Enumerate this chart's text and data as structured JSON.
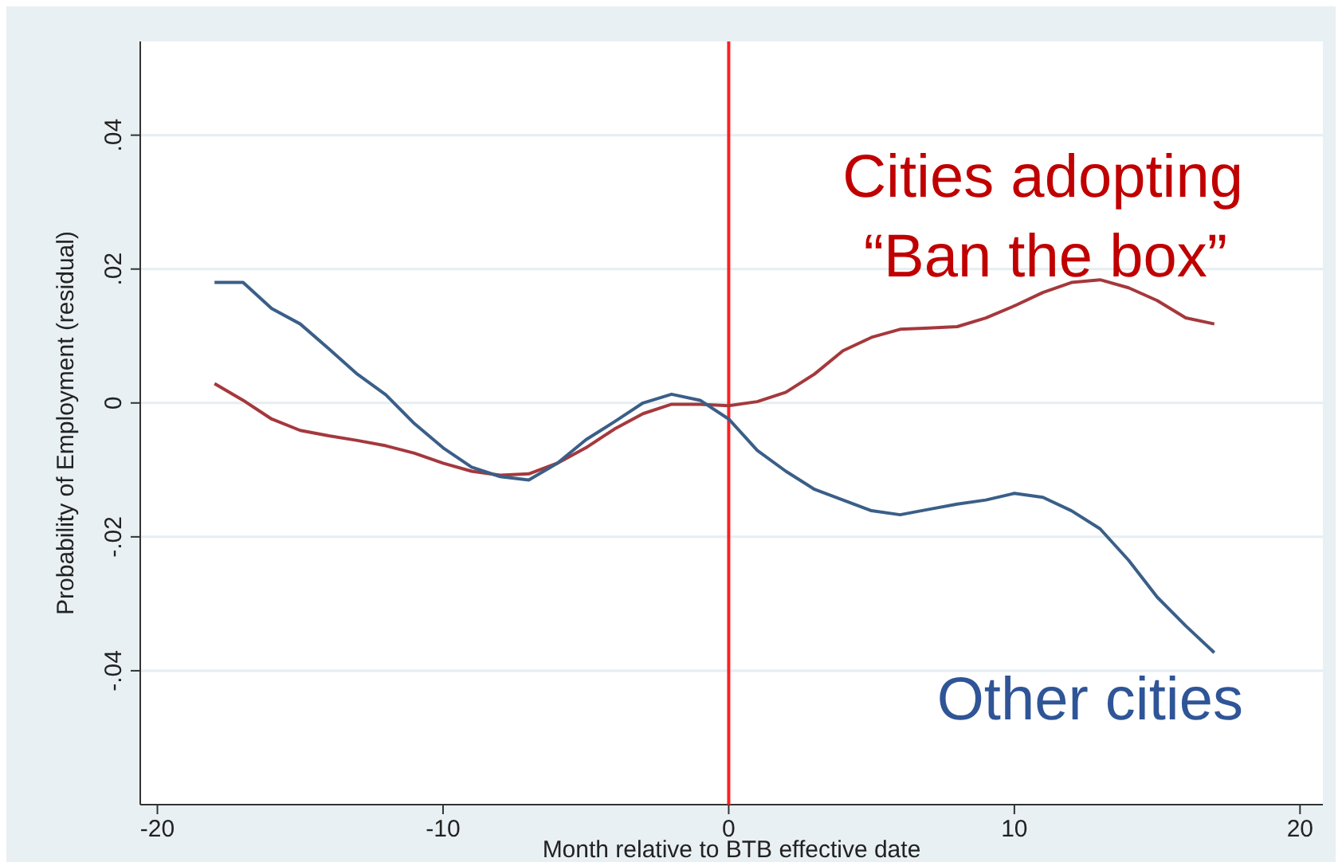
{
  "chart_data": {
    "type": "line",
    "xlabel": "Month relative to BTB effective date",
    "ylabel": "Probability of Employment (residual)",
    "x": [
      -18,
      -17,
      -16,
      -15,
      -14,
      -13,
      -12,
      -11,
      -10,
      -9,
      -8,
      -7,
      -6,
      -5,
      -4,
      -3,
      -2,
      -1,
      0,
      1,
      2,
      3,
      4,
      5,
      6,
      7,
      8,
      9,
      10,
      11,
      12,
      13,
      14,
      15,
      16,
      17
    ],
    "series": [
      {
        "name": "Cities adopting\n“Ban the box”",
        "color": "#a5383c",
        "values": [
          0.0029,
          0.0004,
          -0.0024,
          -0.0041,
          -0.0049,
          -0.0056,
          -0.0064,
          -0.0075,
          -0.009,
          -0.0102,
          -0.0108,
          -0.0106,
          -0.009,
          -0.0067,
          -0.0039,
          -0.0016,
          -0.0002,
          -0.0002,
          -0.0004,
          0.0002,
          0.0016,
          0.0043,
          0.0078,
          0.0098,
          0.011,
          0.0112,
          0.0114,
          0.0127,
          0.0145,
          0.0165,
          0.018,
          0.0184,
          0.0172,
          0.0153,
          0.0127,
          0.0118
        ]
      },
      {
        "name": "Other cities",
        "color": "#3a5f88",
        "values": [
          0.018,
          0.018,
          0.0141,
          0.0118,
          0.0081,
          0.0043,
          0.0012,
          -0.0031,
          -0.0067,
          -0.0096,
          -0.011,
          -0.0115,
          -0.009,
          -0.0055,
          -0.0028,
          0,
          0.0013,
          0.0004,
          -0.0024,
          -0.0071,
          -0.0102,
          -0.0129,
          -0.0145,
          -0.0161,
          -0.0167,
          -0.0159,
          -0.0151,
          -0.0145,
          -0.0135,
          -0.0141,
          -0.0161,
          -0.0188,
          -0.0235,
          -0.029,
          -0.0333,
          -0.0373
        ]
      }
    ],
    "xlim": [
      -20.6,
      20.8
    ],
    "ylim": [
      -0.06,
      0.054
    ],
    "xticks": [
      -20,
      -10,
      0,
      10,
      20
    ],
    "yticks": [
      {
        "value": -0.04,
        "label": "-.04"
      },
      {
        "value": -0.02,
        "label": "-.02"
      },
      0,
      {
        "value": 0.02,
        "label": ".02"
      },
      {
        "value": 0.04,
        "label": ".04"
      }
    ],
    "ref_lines": [
      {
        "axis": "x",
        "value": 0,
        "color": "#ff2020"
      }
    ],
    "grid": "y",
    "marker": "none",
    "line_style": "solid"
  }
}
